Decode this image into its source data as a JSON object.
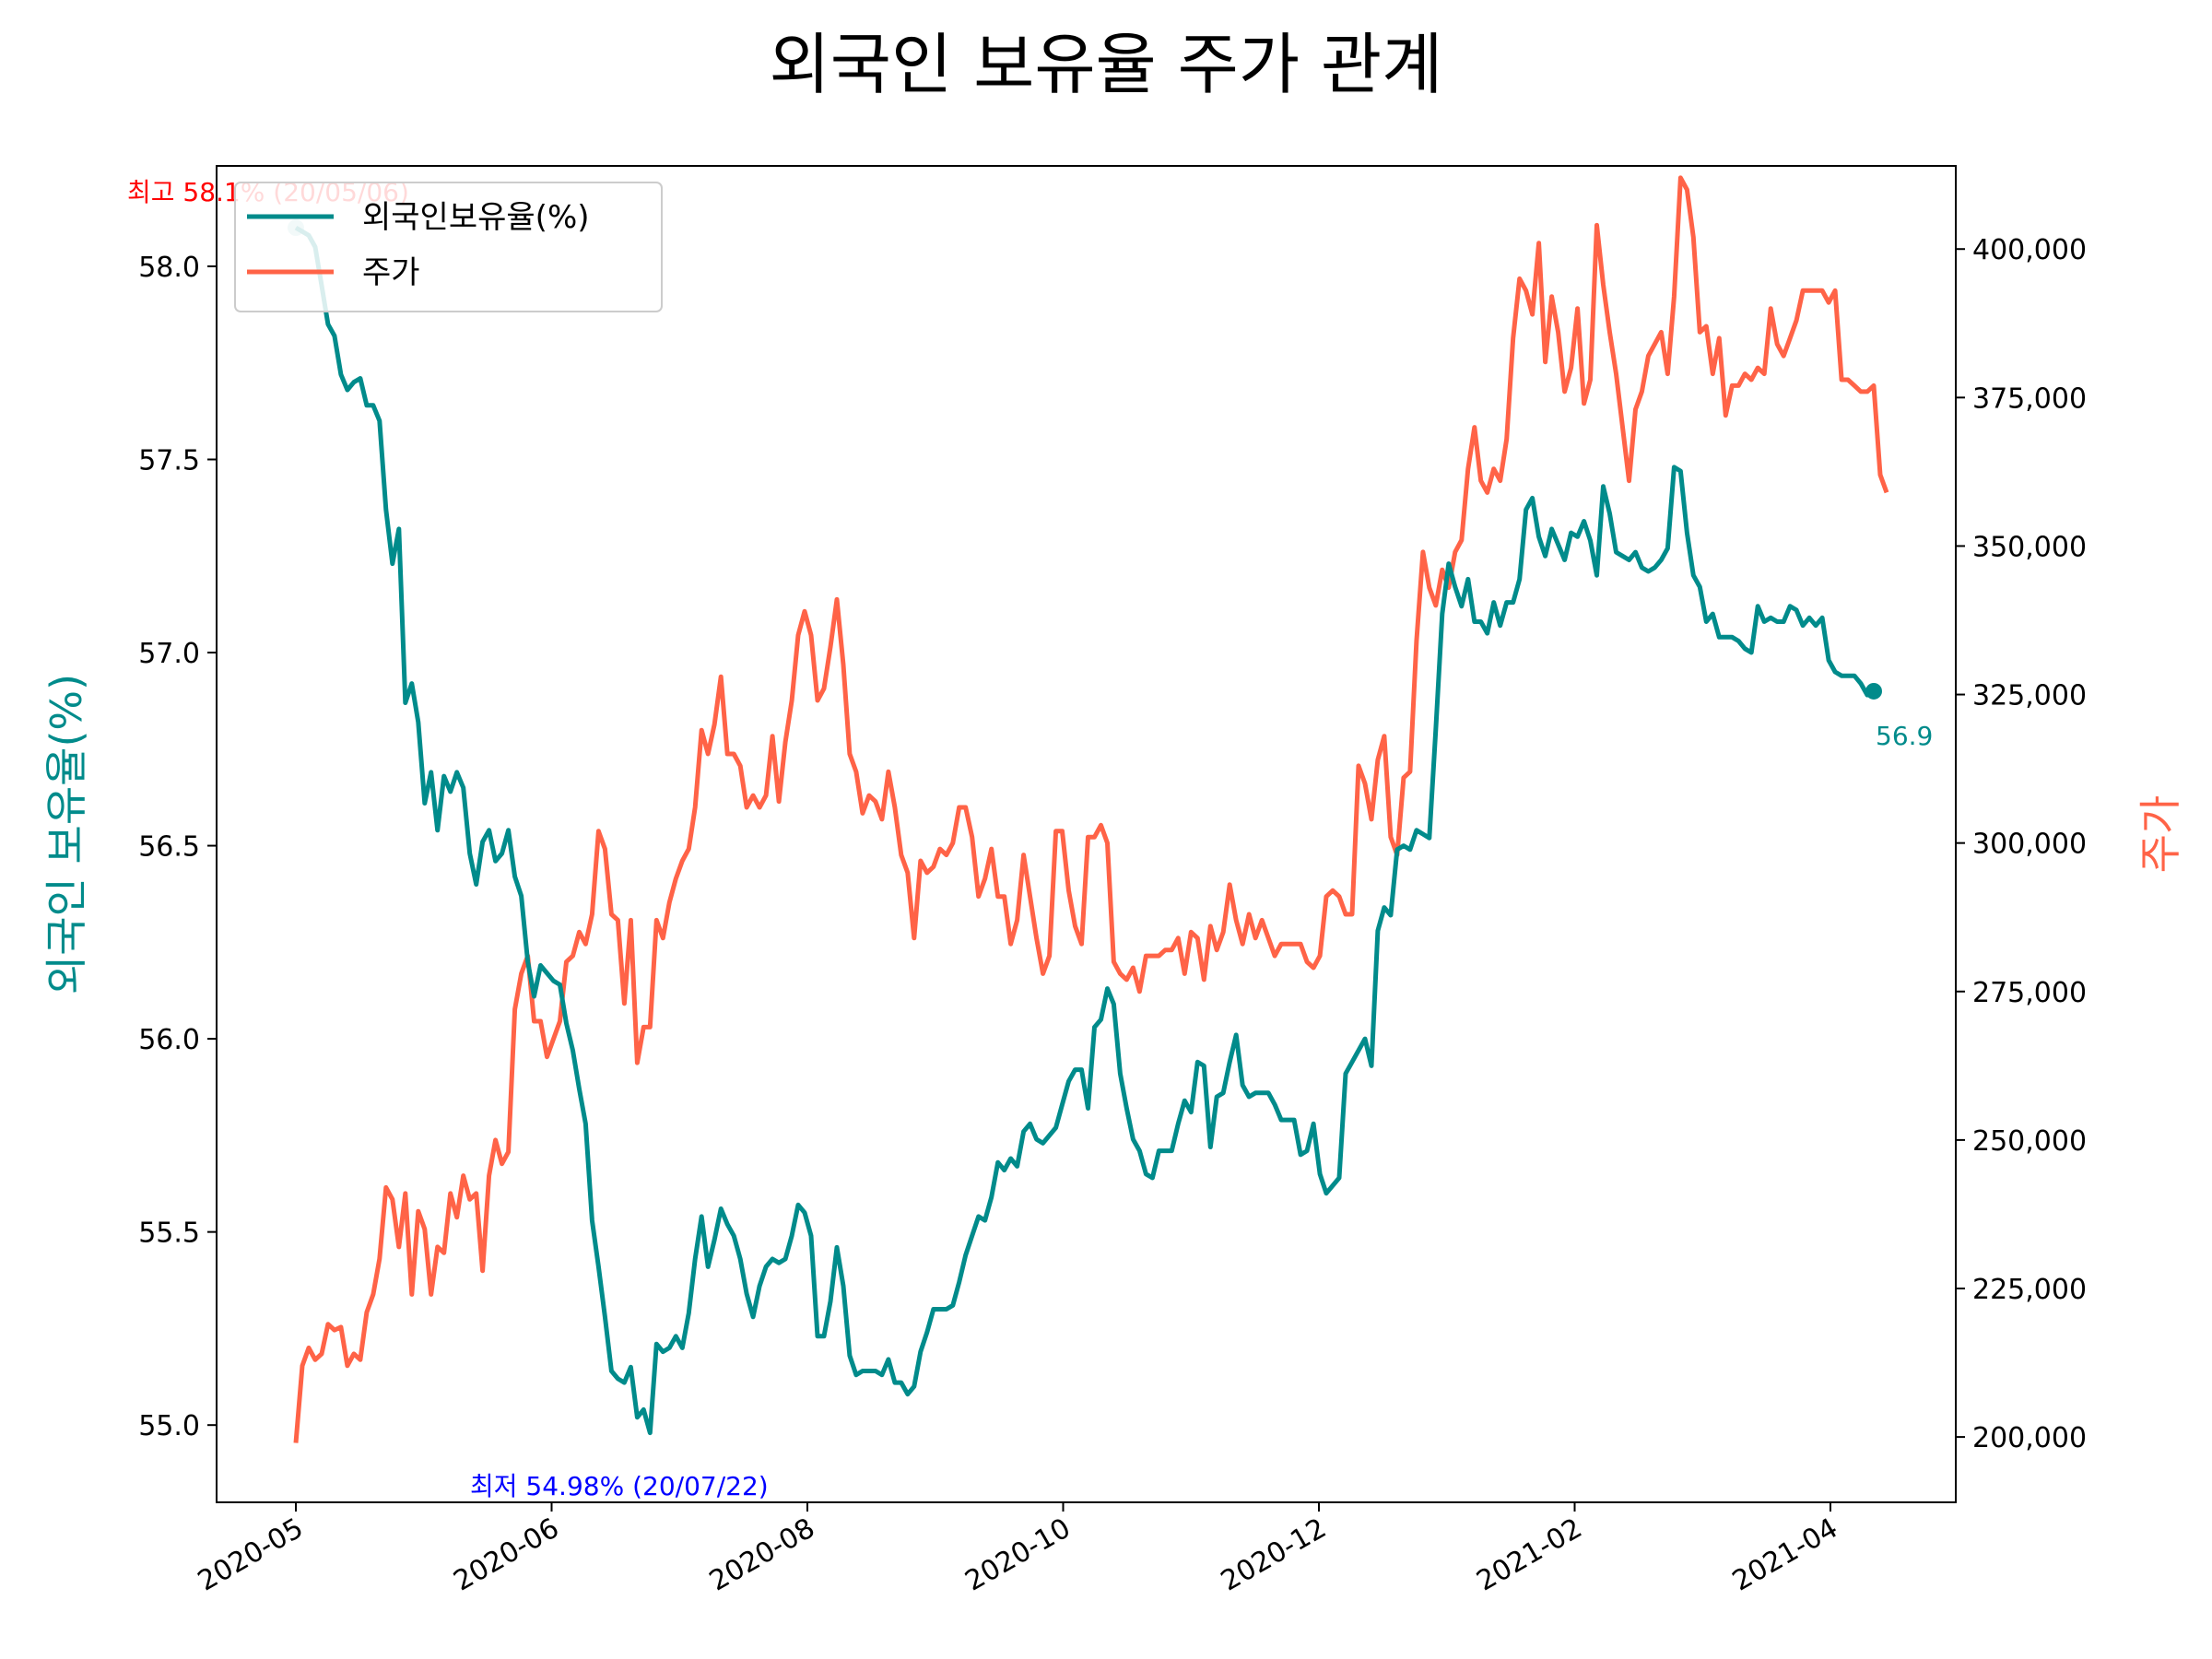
{
  "chart_data": {
    "type": "line",
    "title": "외국인 보유율 주가 관계",
    "ylabel_left": "외국인 보유율(%)",
    "ylabel_right": "주가",
    "x_ticks": [
      "2020-05",
      "2020-06",
      "2020-08",
      "2020-10",
      "2020-12",
      "2021-02",
      "2021-04"
    ],
    "y_left_ticks": [
      "55.0",
      "55.5",
      "56.0",
      "56.5",
      "57.0",
      "57.5",
      "58.0"
    ],
    "y_right_ticks": [
      "200,000",
      "225,000",
      "250,000",
      "275,000",
      "300,000",
      "325,000",
      "350,000",
      "375,000",
      "400,000"
    ],
    "y_left_lim": [
      54.8,
      58.26
    ],
    "y_right_lim": [
      189000,
      414000
    ],
    "y_left_tick_values": [
      55.0,
      55.5,
      56.0,
      56.5,
      57.0,
      57.5,
      58.0
    ],
    "y_right_tick_values": [
      200000,
      225000,
      250000,
      275000,
      300000,
      325000,
      350000,
      375000,
      400000
    ],
    "legend_position": "upper-left",
    "grid": false,
    "colors": {
      "holding": "#008b8b",
      "price": "#ff6347",
      "max": "#ff0000",
      "min": "#0000ff"
    },
    "series": [
      {
        "name": "외국인보유율(%)",
        "axis": "left",
        "values": [
          58.1,
          58.09,
          58.08,
          58.05,
          57.95,
          57.85,
          57.82,
          57.72,
          57.68,
          57.7,
          57.71,
          57.64,
          57.64,
          57.6,
          57.37,
          57.23,
          57.32,
          56.87,
          56.92,
          56.82,
          56.61,
          56.69,
          56.54,
          56.68,
          56.64,
          56.69,
          56.65,
          56.48,
          56.4,
          56.51,
          56.54,
          56.46,
          56.48,
          56.54,
          56.42,
          56.37,
          56.2,
          56.11,
          56.19,
          56.17,
          56.15,
          56.14,
          56.04,
          55.97,
          55.87,
          55.78,
          55.53,
          55.41,
          55.28,
          55.14,
          55.12,
          55.11,
          55.15,
          55.02,
          55.04,
          54.98,
          55.21,
          55.19,
          55.2,
          55.23,
          55.2,
          55.29,
          55.43,
          55.54,
          55.41,
          55.48,
          55.56,
          55.52,
          55.49,
          55.43,
          55.34,
          55.28,
          55.36,
          55.41,
          55.43,
          55.42,
          55.43,
          55.49,
          55.57,
          55.55,
          55.49,
          55.23,
          55.23,
          55.32,
          55.46,
          55.36,
          55.18,
          55.13,
          55.14,
          55.14,
          55.14,
          55.13,
          55.17,
          55.11,
          55.11,
          55.08,
          55.1,
          55.19,
          55.24,
          55.3,
          55.3,
          55.3,
          55.31,
          55.37,
          55.44,
          55.49,
          55.54,
          55.53,
          55.59,
          55.68,
          55.66,
          55.69,
          55.67,
          55.76,
          55.78,
          55.74,
          55.73,
          55.75,
          55.77,
          55.83,
          55.89,
          55.92,
          55.92,
          55.82,
          56.03,
          56.05,
          56.13,
          56.09,
          55.91,
          55.82,
          55.74,
          55.71,
          55.65,
          55.64,
          55.71,
          55.71,
          55.71,
          55.78,
          55.84,
          55.81,
          55.94,
          55.93,
          55.72,
          55.85,
          55.86,
          55.94,
          56.01,
          55.88,
          55.85,
          55.86,
          55.86,
          55.86,
          55.83,
          55.79,
          55.79,
          55.79,
          55.7,
          55.71,
          55.78,
          55.65,
          55.6,
          55.62,
          55.64,
          55.91,
          55.94,
          55.97,
          56.0,
          55.93,
          56.28,
          56.34,
          56.32,
          56.49,
          56.5,
          56.49,
          56.54,
          56.53,
          56.52,
          56.8,
          57.1,
          57.23,
          57.17,
          57.12,
          57.19,
          57.08,
          57.08,
          57.05,
          57.13,
          57.07,
          57.13,
          57.13,
          57.19,
          57.37,
          57.4,
          57.3,
          57.25,
          57.32,
          57.28,
          57.24,
          57.31,
          57.3,
          57.34,
          57.29,
          57.2,
          57.43,
          57.36,
          57.26,
          57.25,
          57.24,
          57.26,
          57.22,
          57.21,
          57.22,
          57.24,
          57.27,
          57.48,
          57.47,
          57.31,
          57.2,
          57.17,
          57.08,
          57.1,
          57.04,
          57.04,
          57.04,
          57.03,
          57.01,
          57.0,
          57.12,
          57.08,
          57.09,
          57.08,
          57.08,
          57.12,
          57.11,
          57.07,
          57.09,
          57.07,
          57.09,
          56.98,
          56.95,
          56.94,
          56.94,
          56.94,
          56.92,
          56.89,
          56.9
        ]
      },
      {
        "name": "주가",
        "axis": "right",
        "values": [
          199000,
          212000,
          215000,
          213000,
          214000,
          219000,
          218000,
          218500,
          212000,
          214000,
          213000,
          221000,
          224000,
          230000,
          242000,
          240000,
          232000,
          241000,
          224000,
          238000,
          235000,
          224000,
          232000,
          231000,
          241000,
          237000,
          244000,
          240000,
          241000,
          228000,
          244000,
          250000,
          246000,
          248000,
          272000,
          278000,
          281000,
          270000,
          270000,
          264000,
          267000,
          270000,
          280000,
          281000,
          285000,
          283000,
          288000,
          302000,
          299000,
          288000,
          287000,
          273000,
          287000,
          263000,
          269000,
          269000,
          287000,
          284000,
          290000,
          294000,
          297000,
          299000,
          306000,
          319000,
          315000,
          320000,
          328000,
          315000,
          315000,
          313000,
          306000,
          308000,
          306000,
          308000,
          318000,
          307000,
          317000,
          324000,
          335000,
          339000,
          335000,
          324000,
          326000,
          333000,
          341000,
          330000,
          315000,
          312000,
          305000,
          308000,
          307000,
          304000,
          312000,
          306000,
          298000,
          295000,
          284000,
          297000,
          295000,
          296000,
          299000,
          298000,
          300000,
          306000,
          306000,
          301000,
          291000,
          294000,
          299000,
          291000,
          291000,
          283000,
          287000,
          298000,
          291000,
          284000,
          278000,
          281000,
          302000,
          302000,
          292000,
          286000,
          283000,
          301000,
          301000,
          303000,
          300000,
          280000,
          278000,
          277000,
          279000,
          275000,
          281000,
          281000,
          281000,
          282000,
          282000,
          284000,
          278000,
          285000,
          284000,
          277000,
          286000,
          282000,
          285000,
          293000,
          287000,
          283000,
          288000,
          284000,
          287000,
          284000,
          281000,
          283000,
          283000,
          283000,
          283000,
          280000,
          279000,
          281000,
          291000,
          292000,
          291000,
          288000,
          288000,
          313000,
          310000,
          304000,
          314000,
          318000,
          301000,
          298000,
          311000,
          312000,
          334000,
          349000,
          343000,
          340000,
          346000,
          343000,
          349000,
          351000,
          363000,
          370000,
          361000,
          359000,
          363000,
          361000,
          368000,
          385000,
          395000,
          393000,
          389000,
          401000,
          381000,
          392000,
          386000,
          376000,
          380000,
          390000,
          374000,
          378000,
          404000,
          394000,
          386000,
          379000,
          370000,
          361000,
          373000,
          376000,
          382000,
          384000,
          386000,
          379000,
          392000,
          412000,
          410000,
          402000,
          386000,
          387000,
          379000,
          385000,
          372000,
          377000,
          377000,
          379000,
          378000,
          380000,
          379000,
          390000,
          384000,
          382000,
          385000,
          388000,
          393000,
          393000,
          393000,
          393000,
          391000,
          393000,
          378000,
          378000,
          377000,
          376000,
          376000,
          377000,
          362000,
          359000
        ]
      }
    ],
    "annotations": {
      "max_text": "최고 58.1% (20/05/06)",
      "min_text": "최저 54.98% (20/07/22)",
      "last_text": "56.9"
    }
  }
}
